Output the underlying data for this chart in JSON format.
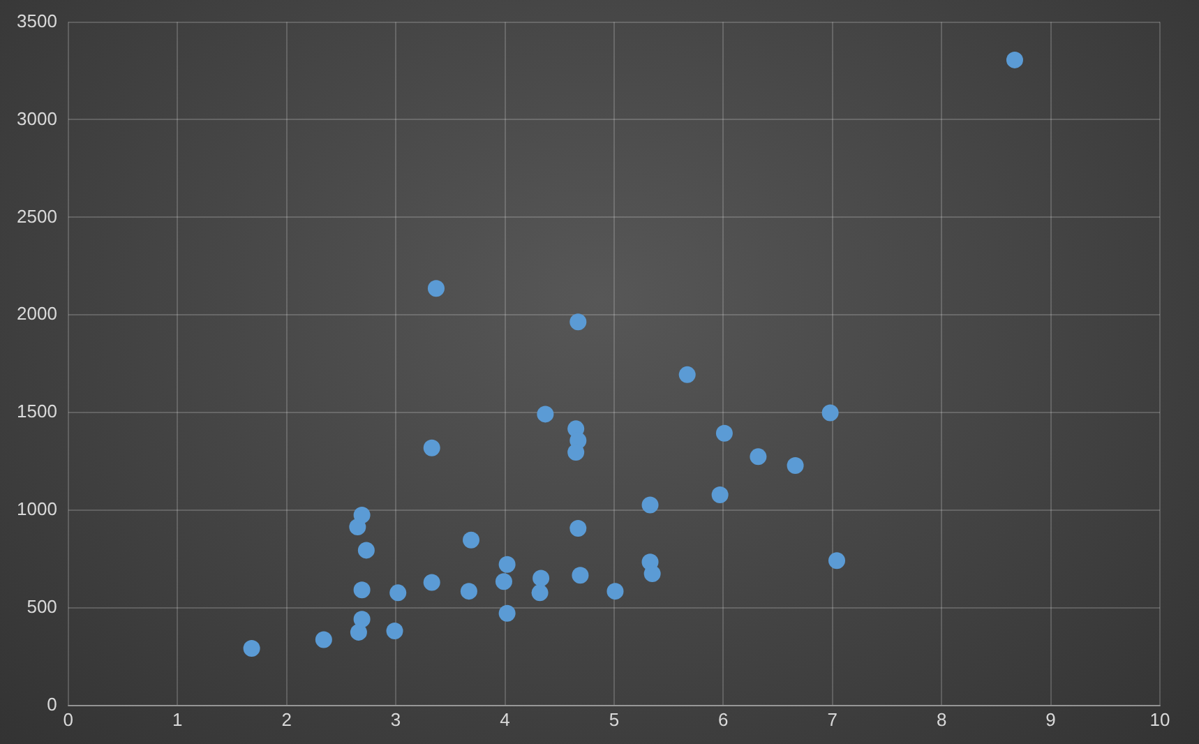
{
  "chart_data": {
    "type": "scatter",
    "xlim": [
      0,
      10
    ],
    "xticks": [
      0,
      1,
      2,
      3,
      4,
      5,
      6,
      7,
      8,
      9,
      10
    ],
    "ylim": [
      0,
      3500
    ],
    "yticks": [
      0,
      500,
      1000,
      1500,
      2000,
      2500,
      3000,
      3500
    ],
    "grid": true,
    "legend": false,
    "marker": "circle",
    "series": [
      {
        "color": "#5b9bd5",
        "x": [
          1.68,
          2.34,
          2.66,
          2.69,
          2.65,
          2.69,
          2.73,
          2.69,
          3.02,
          2.99,
          3.33,
          3.33,
          3.37,
          3.69,
          3.67,
          3.99,
          4.0,
          4.02,
          4.02,
          4.33,
          4.32,
          4.37,
          4.67,
          4.65,
          4.67,
          4.65,
          4.67,
          4.69,
          5.01,
          5.33,
          5.33,
          5.35,
          5.67,
          5.97,
          6.01,
          6.32,
          6.66,
          6.98,
          7.04,
          8.67
        ],
        "values": [
          292,
          337,
          375,
          442,
          914,
          975,
          795,
          592,
          577,
          382,
          630,
          1319,
          2136,
          847,
          585,
          635,
          null,
          722,
          472,
          652,
          577,
          1492,
          1964,
          1417,
          1357,
          1297,
          907,
          667,
          585,
          1027,
          735,
          675,
          1694,
          1079,
          1394,
          1274,
          1229,
          1499,
          742,
          3306
        ]
      }
    ]
  }
}
